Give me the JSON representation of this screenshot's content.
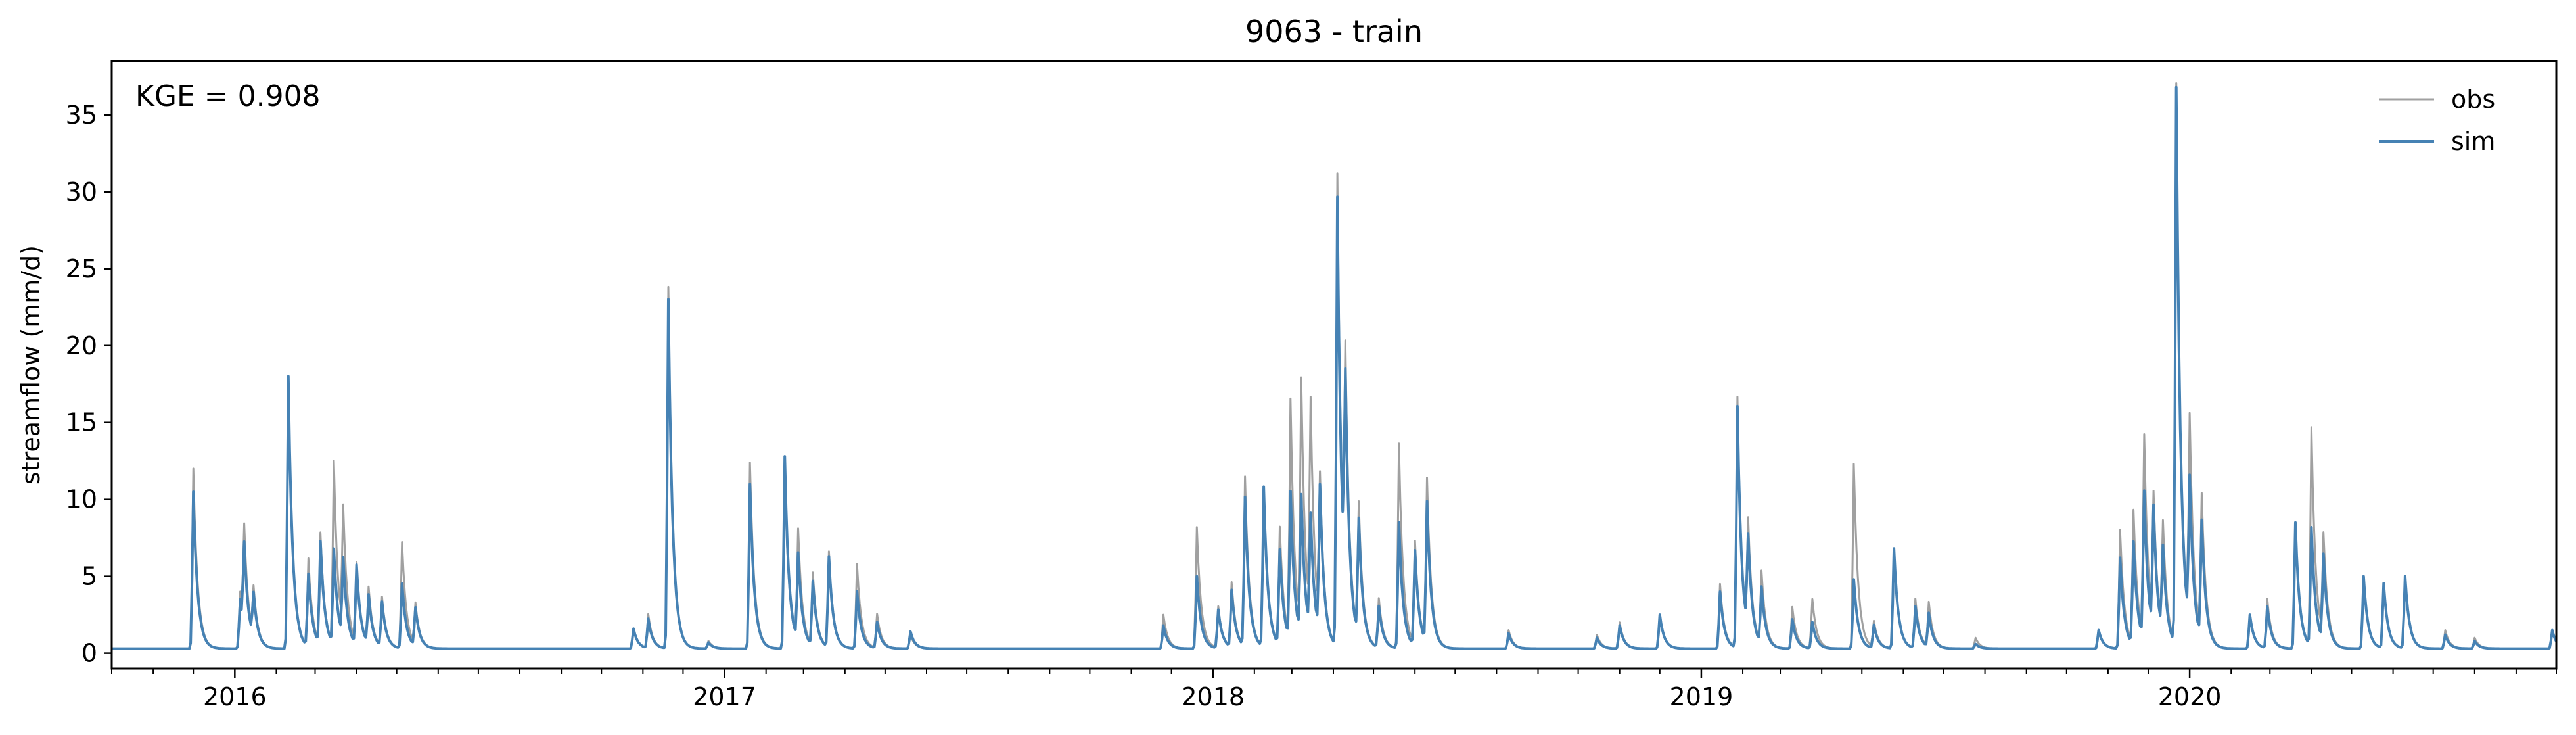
{
  "chart_data": {
    "type": "line",
    "title": "9063 - train",
    "xlabel": "",
    "ylabel": "streamflow (mm/d)",
    "annotation": "KGE = 0.908",
    "legend_position": "top-right",
    "grid": false,
    "xlim": [
      "2015-10-01",
      "2020-10-01"
    ],
    "ylim": [
      -1,
      38.5
    ],
    "yticks": [
      0,
      5,
      10,
      15,
      20,
      25,
      30,
      35
    ],
    "xticks": [
      {
        "date": "2016-01-01",
        "label": "2016"
      },
      {
        "date": "2017-01-01",
        "label": "2017"
      },
      {
        "date": "2018-01-01",
        "label": "2018"
      },
      {
        "date": "2019-01-01",
        "label": "2019"
      },
      {
        "date": "2020-01-01",
        "label": "2020"
      }
    ],
    "baseflow": 0.3,
    "series": [
      {
        "name": "obs",
        "color": "#a0a0a0",
        "peaks": [
          [
            "2015-12-01",
            12.0
          ],
          [
            "2016-01-05",
            4.0
          ],
          [
            "2016-01-08",
            7.0
          ],
          [
            "2016-01-15",
            3.5
          ],
          [
            "2016-02-10",
            18.0
          ],
          [
            "2016-02-25",
            6.0
          ],
          [
            "2016-03-05",
            7.5
          ],
          [
            "2016-03-15",
            12.2
          ],
          [
            "2016-03-22",
            8.3
          ],
          [
            "2016-04-01",
            5.5
          ],
          [
            "2016-04-10",
            4.0
          ],
          [
            "2016-04-20",
            3.5
          ],
          [
            "2016-05-05",
            7.2
          ],
          [
            "2016-05-15",
            3.0
          ],
          [
            "2016-10-25",
            1.5
          ],
          [
            "2016-11-05",
            2.5
          ],
          [
            "2016-11-20",
            23.8
          ],
          [
            "2016-12-20",
            0.8
          ],
          [
            "2017-01-20",
            12.4
          ],
          [
            "2017-02-15",
            12.0
          ],
          [
            "2017-02-25",
            7.6
          ],
          [
            "2017-03-08",
            5.0
          ],
          [
            "2017-03-20",
            6.5
          ],
          [
            "2017-04-10",
            5.8
          ],
          [
            "2017-04-25",
            2.5
          ],
          [
            "2017-05-20",
            1.2
          ],
          [
            "2017-11-25",
            2.5
          ],
          [
            "2017-12-20",
            8.2
          ],
          [
            "2018-01-05",
            3.0
          ],
          [
            "2018-01-15",
            4.5
          ],
          [
            "2018-01-25",
            11.3
          ],
          [
            "2018-02-08",
            10.0
          ],
          [
            "2018-02-20",
            8.0
          ],
          [
            "2018-02-28",
            15.9
          ],
          [
            "2018-03-08",
            16.6
          ],
          [
            "2018-03-15",
            14.7
          ],
          [
            "2018-03-22",
            10.0
          ],
          [
            "2018-04-04",
            31.0
          ],
          [
            "2018-04-10",
            15.6
          ],
          [
            "2018-04-20",
            9.0
          ],
          [
            "2018-05-05",
            3.5
          ],
          [
            "2018-05-20",
            13.6
          ],
          [
            "2018-06-01",
            7.0
          ],
          [
            "2018-06-10",
            11.0
          ],
          [
            "2018-08-10",
            1.5
          ],
          [
            "2018-10-15",
            1.2
          ],
          [
            "2018-11-01",
            2.0
          ],
          [
            "2018-12-01",
            2.5
          ],
          [
            "2019-01-15",
            4.5
          ],
          [
            "2019-01-28",
            16.6
          ],
          [
            "2019-02-05",
            7.5
          ],
          [
            "2019-02-15",
            5.0
          ],
          [
            "2019-03-10",
            3.0
          ],
          [
            "2019-03-25",
            3.5
          ],
          [
            "2019-04-25",
            12.3
          ],
          [
            "2019-05-10",
            2.0
          ],
          [
            "2019-05-25",
            6.7
          ],
          [
            "2019-06-10",
            3.5
          ],
          [
            "2019-06-20",
            3.2
          ],
          [
            "2019-07-25",
            1.0
          ],
          [
            "2019-10-25",
            1.5
          ],
          [
            "2019-11-10",
            8.0
          ],
          [
            "2019-11-20",
            9.0
          ],
          [
            "2019-11-28",
            13.5
          ],
          [
            "2019-12-05",
            9.0
          ],
          [
            "2019-12-12",
            7.5
          ],
          [
            "2019-12-22",
            36.7
          ],
          [
            "2020-01-01",
            14.0
          ],
          [
            "2020-01-10",
            9.5
          ],
          [
            "2020-02-15",
            2.5
          ],
          [
            "2020-02-28",
            3.5
          ],
          [
            "2020-03-20",
            8.5
          ],
          [
            "2020-04-01",
            14.5
          ],
          [
            "2020-04-10",
            7.0
          ],
          [
            "2020-05-10",
            4.8
          ],
          [
            "2020-05-25",
            4.5
          ],
          [
            "2020-06-10",
            5.0
          ],
          [
            "2020-07-10",
            1.5
          ],
          [
            "2020-08-01",
            1.0
          ],
          [
            "2020-09-28",
            1.5
          ]
        ]
      },
      {
        "name": "sim",
        "color": "#4682b4",
        "peaks": [
          [
            "2015-12-01",
            10.5
          ],
          [
            "2016-01-05",
            3.5
          ],
          [
            "2016-01-08",
            6.0
          ],
          [
            "2016-01-15",
            3.2
          ],
          [
            "2016-02-10",
            18.0
          ],
          [
            "2016-02-25",
            5.0
          ],
          [
            "2016-03-05",
            7.0
          ],
          [
            "2016-03-15",
            6.5
          ],
          [
            "2016-03-22",
            5.5
          ],
          [
            "2016-04-01",
            5.5
          ],
          [
            "2016-04-10",
            3.5
          ],
          [
            "2016-04-20",
            3.2
          ],
          [
            "2016-05-05",
            4.5
          ],
          [
            "2016-05-15",
            2.8
          ],
          [
            "2016-10-25",
            1.6
          ],
          [
            "2016-11-05",
            2.2
          ],
          [
            "2016-11-20",
            23.0
          ],
          [
            "2016-12-20",
            0.7
          ],
          [
            "2017-01-20",
            11.0
          ],
          [
            "2017-02-15",
            12.8
          ],
          [
            "2017-02-25",
            6.0
          ],
          [
            "2017-03-08",
            4.5
          ],
          [
            "2017-03-20",
            6.2
          ],
          [
            "2017-04-10",
            4.0
          ],
          [
            "2017-04-25",
            2.0
          ],
          [
            "2017-05-20",
            1.4
          ],
          [
            "2017-11-25",
            1.8
          ],
          [
            "2017-12-20",
            5.0
          ],
          [
            "2018-01-05",
            2.8
          ],
          [
            "2018-01-15",
            4.0
          ],
          [
            "2018-01-25",
            10.0
          ],
          [
            "2018-02-08",
            10.7
          ],
          [
            "2018-02-20",
            6.5
          ],
          [
            "2018-02-28",
            10.0
          ],
          [
            "2018-03-08",
            9.5
          ],
          [
            "2018-03-15",
            8.0
          ],
          [
            "2018-03-22",
            10.0
          ],
          [
            "2018-04-04",
            29.5
          ],
          [
            "2018-04-10",
            14.0
          ],
          [
            "2018-04-20",
            8.0
          ],
          [
            "2018-05-05",
            3.0
          ],
          [
            "2018-05-20",
            8.5
          ],
          [
            "2018-06-01",
            6.5
          ],
          [
            "2018-06-10",
            9.5
          ],
          [
            "2018-08-10",
            1.3
          ],
          [
            "2018-10-15",
            1.0
          ],
          [
            "2018-11-01",
            1.8
          ],
          [
            "2018-12-01",
            2.5
          ],
          [
            "2019-01-15",
            4.0
          ],
          [
            "2019-01-28",
            16.0
          ],
          [
            "2019-02-05",
            6.5
          ],
          [
            "2019-02-15",
            4.0
          ],
          [
            "2019-03-10",
            2.2
          ],
          [
            "2019-03-25",
            2.0
          ],
          [
            "2019-04-25",
            4.8
          ],
          [
            "2019-05-10",
            1.8
          ],
          [
            "2019-05-25",
            6.8
          ],
          [
            "2019-06-10",
            3.0
          ],
          [
            "2019-06-20",
            2.5
          ],
          [
            "2019-07-25",
            0.6
          ],
          [
            "2019-10-25",
            1.5
          ],
          [
            "2019-11-10",
            6.2
          ],
          [
            "2019-11-20",
            7.0
          ],
          [
            "2019-11-28",
            10.0
          ],
          [
            "2019-12-05",
            8.5
          ],
          [
            "2019-12-12",
            6.0
          ],
          [
            "2019-12-22",
            36.5
          ],
          [
            "2020-01-01",
            10.0
          ],
          [
            "2020-01-10",
            8.0
          ],
          [
            "2020-02-15",
            2.5
          ],
          [
            "2020-02-28",
            3.0
          ],
          [
            "2020-03-20",
            8.5
          ],
          [
            "2020-04-01",
            8.0
          ],
          [
            "2020-04-10",
            6.0
          ],
          [
            "2020-05-10",
            5.0
          ],
          [
            "2020-05-25",
            4.5
          ],
          [
            "2020-06-10",
            5.0
          ],
          [
            "2020-07-10",
            1.2
          ],
          [
            "2020-08-01",
            0.8
          ],
          [
            "2020-09-28",
            1.5
          ]
        ]
      }
    ]
  }
}
